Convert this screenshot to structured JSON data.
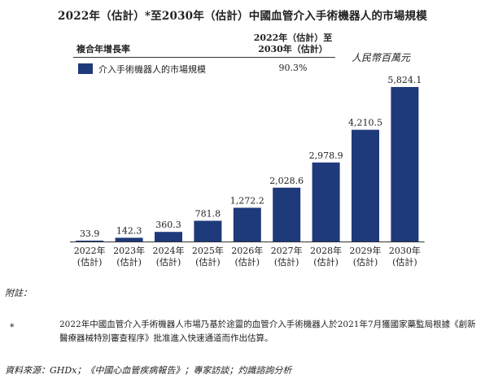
{
  "title": "2022年（估計）*至2030年（估計）中國血管介入手術機器人的市場規模",
  "legend": {
    "cagr_header": "複合年增長率",
    "cagr_period_line1": "2022年（估計）至",
    "cagr_period_line2": "2030年（估計）",
    "series_label": "介入手術機器人的市場規模",
    "cagr_value": "90.3%"
  },
  "unit": "人民幣百萬元",
  "chart_data": {
    "type": "bar",
    "categories": [
      [
        "2022年",
        "(估計)"
      ],
      [
        "2023年",
        "(估計)"
      ],
      [
        "2024年",
        "(估計)"
      ],
      [
        "2025年",
        "(估計)"
      ],
      [
        "2026年",
        "(估計)"
      ],
      [
        "2027年",
        "(估計)"
      ],
      [
        "2028年",
        "(估計)"
      ],
      [
        "2029年",
        "(估計)"
      ],
      [
        "2030年",
        "(估計)"
      ]
    ],
    "values": [
      33.9,
      142.3,
      360.3,
      781.8,
      1272.2,
      2028.6,
      2978.9,
      4210.5,
      5824.1
    ],
    "value_labels": [
      "33.9",
      "142.3",
      "360.3",
      "781.8",
      "1,272.2",
      "2,028.6",
      "2,978.9",
      "4,210.5",
      "5,824.1"
    ],
    "ylim": [
      0,
      5824.1
    ],
    "bar_color": "#1f3a7a",
    "grid": false
  },
  "notes": {
    "header": "附註：",
    "marker": "*",
    "text": "2022年中國血管介入手術機器人市場乃基於途靈的血管介入手術機器人於2021年7月獲國家藥監局根據《創新醫療器械特別審查程序》批准進入快速通道而作出估算。"
  },
  "source": "資料來源：GHDx；《中國心血管疾病報告》；專家訪談；灼識諮詢分析"
}
